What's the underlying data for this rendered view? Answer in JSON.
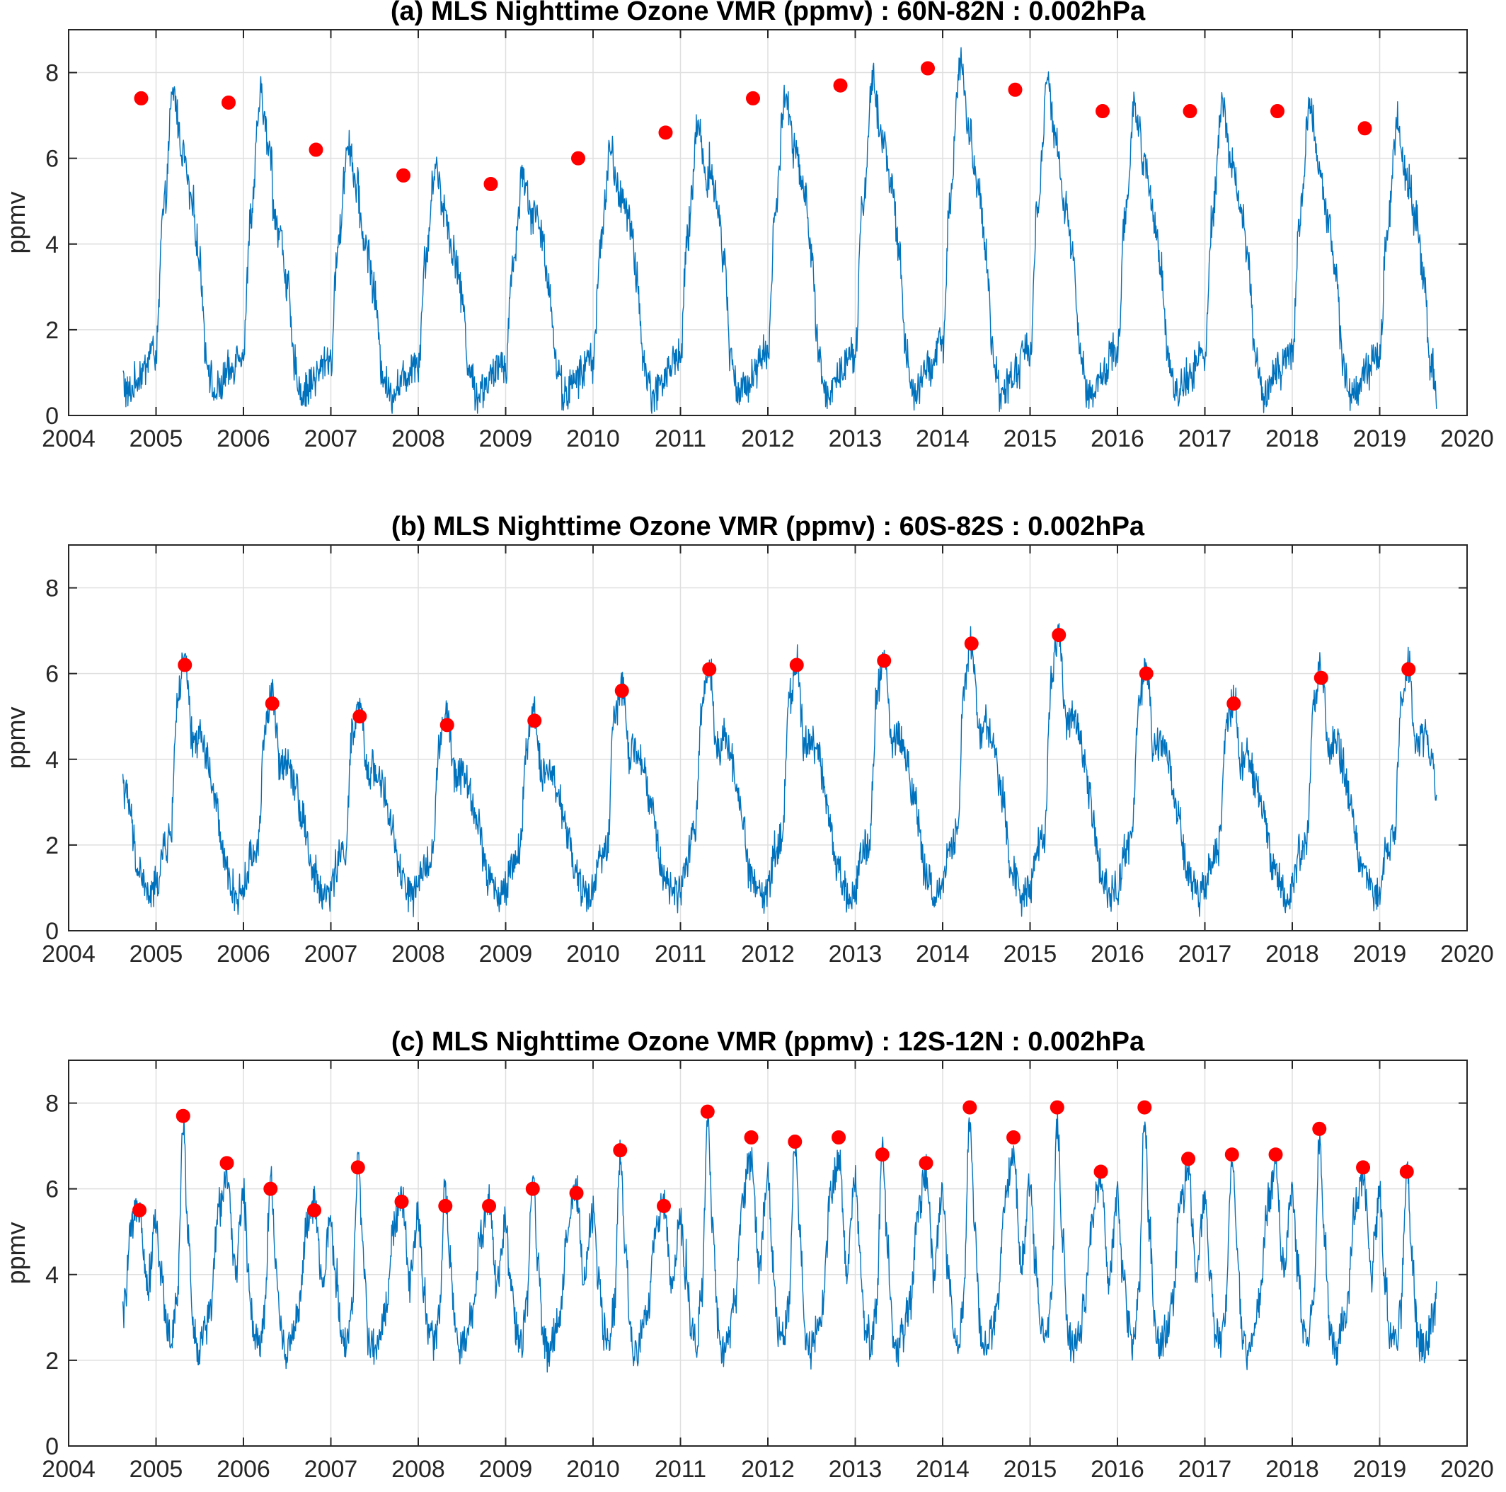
{
  "colors": {
    "series": "#0072BD",
    "peaks": "#FF0000",
    "grid": "#dfdfdf",
    "axis": "#262626"
  },
  "chart_data": [
    {
      "type": "line",
      "title": "(a) MLS Nighttime Ozone VMR (ppmv) : 60N-82N : 0.002hPa",
      "xlabel": "",
      "ylabel": "ppmv",
      "xlim": [
        2004,
        2020
      ],
      "ylim": [
        0,
        9
      ],
      "xticks": [
        2004,
        2005,
        2006,
        2007,
        2008,
        2009,
        2010,
        2011,
        2012,
        2013,
        2014,
        2015,
        2016,
        2017,
        2018,
        2019,
        2020
      ],
      "yticks": [
        0,
        2,
        4,
        6,
        8
      ],
      "grid": true,
      "data_start": 2004.62,
      "data_end": 2019.65,
      "series_color": "#0072BD",
      "peak_color": "#FF0000",
      "seasonal_cycle": [
        [
          0.0,
          1.4
        ],
        [
          0.08,
          4.5
        ],
        [
          0.2,
          7.3
        ],
        [
          0.3,
          6.0
        ],
        [
          0.42,
          4.8
        ],
        [
          0.5,
          3.5
        ],
        [
          0.58,
          1.3
        ],
        [
          0.67,
          0.5
        ],
        [
          0.85,
          1.0
        ],
        [
          0.95,
          1.5
        ],
        [
          1.0,
          1.4
        ]
      ],
      "peaks": [
        {
          "x": 2004.83,
          "y": 7.4
        },
        {
          "x": 2005.83,
          "y": 7.3
        },
        {
          "x": 2006.83,
          "y": 6.2
        },
        {
          "x": 2007.83,
          "y": 5.6
        },
        {
          "x": 2008.83,
          "y": 5.4
        },
        {
          "x": 2009.83,
          "y": 6.0
        },
        {
          "x": 2010.83,
          "y": 6.6
        },
        {
          "x": 2011.83,
          "y": 7.4
        },
        {
          "x": 2012.83,
          "y": 7.7
        },
        {
          "x": 2013.83,
          "y": 8.1
        },
        {
          "x": 2014.83,
          "y": 7.6
        },
        {
          "x": 2015.83,
          "y": 7.1
        },
        {
          "x": 2016.83,
          "y": 7.1
        },
        {
          "x": 2017.83,
          "y": 7.1
        },
        {
          "x": 2018.83,
          "y": 6.7
        }
      ]
    },
    {
      "type": "line",
      "title": "(b) MLS Nighttime Ozone VMR (ppmv) : 60S-82S : 0.002hPa",
      "xlabel": "",
      "ylabel": "ppmv",
      "xlim": [
        2004,
        2020
      ],
      "ylim": [
        0,
        9
      ],
      "xticks": [
        2004,
        2005,
        2006,
        2007,
        2008,
        2009,
        2010,
        2011,
        2012,
        2013,
        2014,
        2015,
        2016,
        2017,
        2018,
        2019,
        2020
      ],
      "yticks": [
        0,
        2,
        4,
        6,
        8
      ],
      "grid": true,
      "data_start": 2004.62,
      "data_end": 2019.65,
      "series_color": "#0072BD",
      "peak_color": "#FF0000",
      "seasonal_cycle": [
        [
          0.0,
          1.0
        ],
        [
          0.08,
          1.8
        ],
        [
          0.16,
          2.1
        ],
        [
          0.25,
          5.4
        ],
        [
          0.33,
          6.2
        ],
        [
          0.42,
          4.3
        ],
        [
          0.5,
          4.5
        ],
        [
          0.58,
          4.0
        ],
        [
          0.67,
          3.0
        ],
        [
          0.8,
          1.4
        ],
        [
          0.92,
          0.8
        ],
        [
          1.0,
          1.0
        ]
      ],
      "peaks": [
        {
          "x": 2005.33,
          "y": 6.2
        },
        {
          "x": 2006.33,
          "y": 5.3
        },
        {
          "x": 2007.33,
          "y": 5.0
        },
        {
          "x": 2008.33,
          "y": 4.8
        },
        {
          "x": 2009.33,
          "y": 4.9
        },
        {
          "x": 2010.33,
          "y": 5.6
        },
        {
          "x": 2011.33,
          "y": 6.1
        },
        {
          "x": 2012.33,
          "y": 6.2
        },
        {
          "x": 2013.33,
          "y": 6.3
        },
        {
          "x": 2014.33,
          "y": 6.7
        },
        {
          "x": 2015.33,
          "y": 6.9
        },
        {
          "x": 2016.33,
          "y": 6.0
        },
        {
          "x": 2017.33,
          "y": 5.3
        },
        {
          "x": 2018.33,
          "y": 5.9
        },
        {
          "x": 2019.33,
          "y": 6.1
        }
      ]
    },
    {
      "type": "line",
      "title": "(c) MLS Nighttime Ozone VMR (ppmv) : 12S-12N : 0.002hPa",
      "xlabel": "",
      "ylabel": "ppmv",
      "xlim": [
        2004,
        2020
      ],
      "ylim": [
        0,
        9
      ],
      "xticks": [
        2004,
        2005,
        2006,
        2007,
        2008,
        2009,
        2010,
        2011,
        2012,
        2013,
        2014,
        2015,
        2016,
        2017,
        2018,
        2019,
        2020
      ],
      "yticks": [
        0,
        2,
        4,
        6,
        8
      ],
      "grid": true,
      "data_start": 2004.62,
      "data_end": 2019.65,
      "series_color": "#0072BD",
      "peak_color": "#FF0000",
      "seasonal_cycle": [
        [
          0.0,
          5.8
        ],
        [
          0.06,
          4.0
        ],
        [
          0.12,
          2.7
        ],
        [
          0.18,
          2.4
        ],
        [
          0.24,
          3.2
        ],
        [
          0.31,
          6.6
        ],
        [
          0.37,
          4.5
        ],
        [
          0.43,
          2.6
        ],
        [
          0.49,
          2.2
        ],
        [
          0.55,
          2.6
        ],
        [
          0.62,
          3.2
        ],
        [
          0.72,
          5.5
        ],
        [
          0.81,
          6.3
        ],
        [
          0.9,
          4.0
        ],
        [
          1.0,
          5.8
        ]
      ],
      "peaks": [
        {
          "x": 2004.81,
          "y": 5.5
        },
        {
          "x": 2005.31,
          "y": 7.7
        },
        {
          "x": 2005.81,
          "y": 6.6
        },
        {
          "x": 2006.31,
          "y": 6.0
        },
        {
          "x": 2006.81,
          "y": 5.5
        },
        {
          "x": 2007.31,
          "y": 6.5
        },
        {
          "x": 2007.81,
          "y": 5.7
        },
        {
          "x": 2008.31,
          "y": 5.6
        },
        {
          "x": 2008.81,
          "y": 5.6
        },
        {
          "x": 2009.31,
          "y": 6.0
        },
        {
          "x": 2009.81,
          "y": 5.9
        },
        {
          "x": 2010.31,
          "y": 6.9
        },
        {
          "x": 2010.81,
          "y": 5.6
        },
        {
          "x": 2011.31,
          "y": 7.8
        },
        {
          "x": 2011.81,
          "y": 7.2
        },
        {
          "x": 2012.31,
          "y": 7.1
        },
        {
          "x": 2012.81,
          "y": 7.2
        },
        {
          "x": 2013.31,
          "y": 6.8
        },
        {
          "x": 2013.81,
          "y": 6.6
        },
        {
          "x": 2014.31,
          "y": 7.9
        },
        {
          "x": 2014.81,
          "y": 7.2
        },
        {
          "x": 2015.31,
          "y": 7.9
        },
        {
          "x": 2015.81,
          "y": 6.4
        },
        {
          "x": 2016.31,
          "y": 7.9
        },
        {
          "x": 2016.81,
          "y": 6.7
        },
        {
          "x": 2017.31,
          "y": 6.8
        },
        {
          "x": 2017.81,
          "y": 6.8
        },
        {
          "x": 2018.31,
          "y": 7.4
        },
        {
          "x": 2018.81,
          "y": 6.5
        },
        {
          "x": 2019.31,
          "y": 6.4
        }
      ]
    }
  ]
}
